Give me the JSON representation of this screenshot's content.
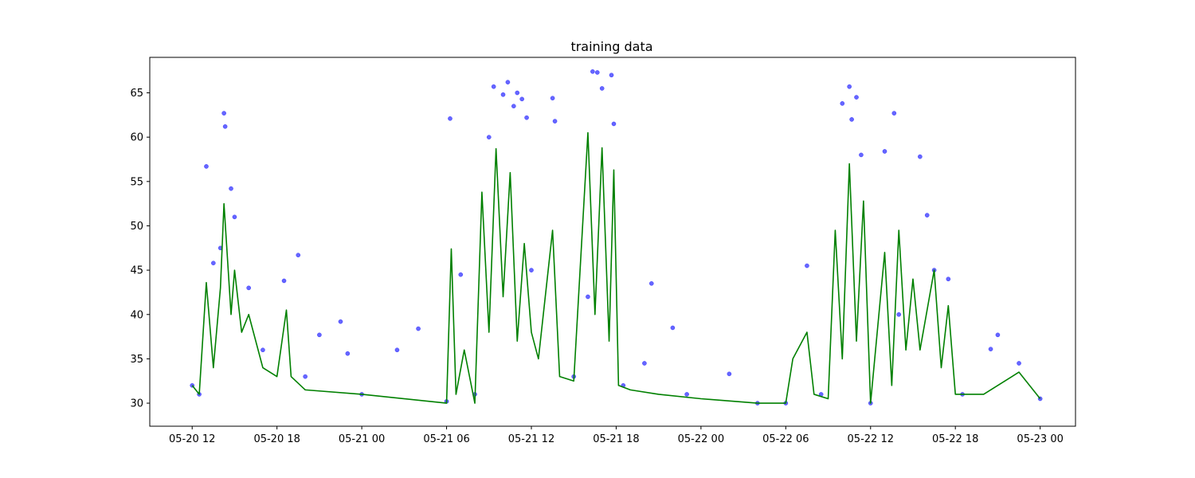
{
  "chart_data": {
    "type": "line",
    "title": "training data",
    "xlabel": "",
    "ylabel": "",
    "x_unit": "datetime",
    "xlim": [
      "2024-05-20 09:00",
      "2024-05-23 02:30"
    ],
    "ylim": [
      27.4,
      69.0
    ],
    "grid": false,
    "x_ticks": [
      "05-20 12",
      "05-20 18",
      "05-21 00",
      "05-21 06",
      "05-21 12",
      "05-21 18",
      "05-22 00",
      "05-22 06",
      "05-22 12",
      "05-22 18",
      "05-23 00"
    ],
    "x_tick_values": [
      "2024-05-20 12:00",
      "2024-05-20 18:00",
      "2024-05-21 00:00",
      "2024-05-21 06:00",
      "2024-05-21 12:00",
      "2024-05-21 18:00",
      "2024-05-22 00:00",
      "2024-05-22 06:00",
      "2024-05-22 12:00",
      "2024-05-22 18:00",
      "2024-05-23 00:00"
    ],
    "y_ticks": [
      30,
      35,
      40,
      45,
      50,
      55,
      60,
      65
    ],
    "colors": {
      "scatter": "#0000ff",
      "line": "#008000"
    },
    "series": [
      {
        "type": "scatter",
        "points": [
          {
            "x": "2024-05-20 12:00",
            "y": 32.0
          },
          {
            "x": "2024-05-20 12:30",
            "y": 31.0
          },
          {
            "x": "2024-05-20 13:00",
            "y": 56.7
          },
          {
            "x": "2024-05-20 13:30",
            "y": 45.8
          },
          {
            "x": "2024-05-20 14:00",
            "y": 47.5
          },
          {
            "x": "2024-05-20 14:15",
            "y": 62.7
          },
          {
            "x": "2024-05-20 14:20",
            "y": 61.2
          },
          {
            "x": "2024-05-20 14:45",
            "y": 54.2
          },
          {
            "x": "2024-05-20 15:00",
            "y": 51.0
          },
          {
            "x": "2024-05-20 16:00",
            "y": 43.0
          },
          {
            "x": "2024-05-20 17:00",
            "y": 36.0
          },
          {
            "x": "2024-05-20 18:30",
            "y": 43.8
          },
          {
            "x": "2024-05-20 19:30",
            "y": 46.7
          },
          {
            "x": "2024-05-20 20:00",
            "y": 33.0
          },
          {
            "x": "2024-05-20 21:00",
            "y": 37.7
          },
          {
            "x": "2024-05-20 22:30",
            "y": 39.2
          },
          {
            "x": "2024-05-20 23:00",
            "y": 35.6
          },
          {
            "x": "2024-05-21 00:00",
            "y": 31.0
          },
          {
            "x": "2024-05-21 02:30",
            "y": 36.0
          },
          {
            "x": "2024-05-21 04:00",
            "y": 38.4
          },
          {
            "x": "2024-05-21 06:00",
            "y": 30.2
          },
          {
            "x": "2024-05-21 06:15",
            "y": 62.1
          },
          {
            "x": "2024-05-21 07:00",
            "y": 44.5
          },
          {
            "x": "2024-05-21 08:00",
            "y": 31.0
          },
          {
            "x": "2024-05-21 09:00",
            "y": 60.0
          },
          {
            "x": "2024-05-21 09:20",
            "y": 65.7
          },
          {
            "x": "2024-05-21 10:00",
            "y": 64.8
          },
          {
            "x": "2024-05-21 10:20",
            "y": 66.2
          },
          {
            "x": "2024-05-21 10:45",
            "y": 63.5
          },
          {
            "x": "2024-05-21 11:00",
            "y": 65.0
          },
          {
            "x": "2024-05-21 11:20",
            "y": 64.3
          },
          {
            "x": "2024-05-21 11:40",
            "y": 62.2
          },
          {
            "x": "2024-05-21 12:00",
            "y": 45.0
          },
          {
            "x": "2024-05-21 13:30",
            "y": 64.4
          },
          {
            "x": "2024-05-21 13:40",
            "y": 61.8
          },
          {
            "x": "2024-05-21 15:00",
            "y": 33.0
          },
          {
            "x": "2024-05-21 16:00",
            "y": 42.0
          },
          {
            "x": "2024-05-21 16:20",
            "y": 67.4
          },
          {
            "x": "2024-05-21 16:40",
            "y": 67.3
          },
          {
            "x": "2024-05-21 17:00",
            "y": 65.5
          },
          {
            "x": "2024-05-21 17:40",
            "y": 67.0
          },
          {
            "x": "2024-05-21 17:50",
            "y": 61.5
          },
          {
            "x": "2024-05-21 18:30",
            "y": 32.0
          },
          {
            "x": "2024-05-21 20:00",
            "y": 34.5
          },
          {
            "x": "2024-05-21 20:30",
            "y": 43.5
          },
          {
            "x": "2024-05-21 22:00",
            "y": 38.5
          },
          {
            "x": "2024-05-21 23:00",
            "y": 31.0
          },
          {
            "x": "2024-05-22 02:00",
            "y": 33.3
          },
          {
            "x": "2024-05-22 04:00",
            "y": 30.0
          },
          {
            "x": "2024-05-22 06:00",
            "y": 30.0
          },
          {
            "x": "2024-05-22 07:30",
            "y": 45.5
          },
          {
            "x": "2024-05-22 08:30",
            "y": 31.0
          },
          {
            "x": "2024-05-22 10:00",
            "y": 63.8
          },
          {
            "x": "2024-05-22 10:30",
            "y": 65.7
          },
          {
            "x": "2024-05-22 10:40",
            "y": 62.0
          },
          {
            "x": "2024-05-22 11:00",
            "y": 64.5
          },
          {
            "x": "2024-05-22 11:20",
            "y": 58.0
          },
          {
            "x": "2024-05-22 12:00",
            "y": 30.0
          },
          {
            "x": "2024-05-22 13:00",
            "y": 58.4
          },
          {
            "x": "2024-05-22 13:40",
            "y": 62.7
          },
          {
            "x": "2024-05-22 14:00",
            "y": 40.0
          },
          {
            "x": "2024-05-22 15:30",
            "y": 57.8
          },
          {
            "x": "2024-05-22 16:00",
            "y": 51.2
          },
          {
            "x": "2024-05-22 16:30",
            "y": 45.0
          },
          {
            "x": "2024-05-22 17:30",
            "y": 44.0
          },
          {
            "x": "2024-05-22 18:30",
            "y": 31.0
          },
          {
            "x": "2024-05-22 20:30",
            "y": 36.1
          },
          {
            "x": "2024-05-22 21:00",
            "y": 37.7
          },
          {
            "x": "2024-05-22 22:30",
            "y": 34.5
          },
          {
            "x": "2024-05-23 00:00",
            "y": 30.5
          }
        ]
      },
      {
        "type": "line",
        "points": [
          {
            "x": "2024-05-20 12:00",
            "y": 32.0
          },
          {
            "x": "2024-05-20 12:30",
            "y": 31.0
          },
          {
            "x": "2024-05-20 13:00",
            "y": 43.6
          },
          {
            "x": "2024-05-20 13:30",
            "y": 34.0
          },
          {
            "x": "2024-05-20 14:00",
            "y": 43.0
          },
          {
            "x": "2024-05-20 14:15",
            "y": 52.5
          },
          {
            "x": "2024-05-20 14:45",
            "y": 40.0
          },
          {
            "x": "2024-05-20 15:00",
            "y": 45.0
          },
          {
            "x": "2024-05-20 15:30",
            "y": 38.0
          },
          {
            "x": "2024-05-20 16:00",
            "y": 40.0
          },
          {
            "x": "2024-05-20 17:00",
            "y": 34.0
          },
          {
            "x": "2024-05-20 18:00",
            "y": 33.0
          },
          {
            "x": "2024-05-20 18:40",
            "y": 40.5
          },
          {
            "x": "2024-05-20 19:00",
            "y": 33.0
          },
          {
            "x": "2024-05-20 20:00",
            "y": 31.5
          },
          {
            "x": "2024-05-21 00:00",
            "y": 31.0
          },
          {
            "x": "2024-05-21 06:00",
            "y": 30.0
          },
          {
            "x": "2024-05-21 06:20",
            "y": 47.4
          },
          {
            "x": "2024-05-21 06:40",
            "y": 31.0
          },
          {
            "x": "2024-05-21 07:15",
            "y": 36.0
          },
          {
            "x": "2024-05-21 08:00",
            "y": 30.0
          },
          {
            "x": "2024-05-21 08:30",
            "y": 53.8
          },
          {
            "x": "2024-05-21 09:00",
            "y": 38.0
          },
          {
            "x": "2024-05-21 09:30",
            "y": 58.7
          },
          {
            "x": "2024-05-21 10:00",
            "y": 42.0
          },
          {
            "x": "2024-05-21 10:30",
            "y": 56.0
          },
          {
            "x": "2024-05-21 11:00",
            "y": 37.0
          },
          {
            "x": "2024-05-21 11:30",
            "y": 48.0
          },
          {
            "x": "2024-05-21 12:00",
            "y": 38.0
          },
          {
            "x": "2024-05-21 12:30",
            "y": 35.0
          },
          {
            "x": "2024-05-21 13:30",
            "y": 49.5
          },
          {
            "x": "2024-05-21 14:00",
            "y": 33.0
          },
          {
            "x": "2024-05-21 15:00",
            "y": 32.5
          },
          {
            "x": "2024-05-21 16:00",
            "y": 60.5
          },
          {
            "x": "2024-05-21 16:30",
            "y": 40.0
          },
          {
            "x": "2024-05-21 17:00",
            "y": 58.8
          },
          {
            "x": "2024-05-21 17:30",
            "y": 37.0
          },
          {
            "x": "2024-05-21 17:50",
            "y": 56.3
          },
          {
            "x": "2024-05-21 18:10",
            "y": 32.0
          },
          {
            "x": "2024-05-21 19:00",
            "y": 31.5
          },
          {
            "x": "2024-05-21 21:00",
            "y": 31.0
          },
          {
            "x": "2024-05-22 00:00",
            "y": 30.5
          },
          {
            "x": "2024-05-22 04:00",
            "y": 30.0
          },
          {
            "x": "2024-05-22 06:00",
            "y": 30.0
          },
          {
            "x": "2024-05-22 06:30",
            "y": 35.0
          },
          {
            "x": "2024-05-22 07:30",
            "y": 38.0
          },
          {
            "x": "2024-05-22 08:00",
            "y": 31.0
          },
          {
            "x": "2024-05-22 09:00",
            "y": 30.5
          },
          {
            "x": "2024-05-22 09:30",
            "y": 49.5
          },
          {
            "x": "2024-05-22 10:00",
            "y": 35.0
          },
          {
            "x": "2024-05-22 10:30",
            "y": 57.0
          },
          {
            "x": "2024-05-22 11:00",
            "y": 37.0
          },
          {
            "x": "2024-05-22 11:30",
            "y": 52.8
          },
          {
            "x": "2024-05-22 12:00",
            "y": 30.0
          },
          {
            "x": "2024-05-22 13:00",
            "y": 47.0
          },
          {
            "x": "2024-05-22 13:30",
            "y": 32.0
          },
          {
            "x": "2024-05-22 14:00",
            "y": 49.5
          },
          {
            "x": "2024-05-22 14:30",
            "y": 36.0
          },
          {
            "x": "2024-05-22 15:00",
            "y": 44.0
          },
          {
            "x": "2024-05-22 15:30",
            "y": 36.0
          },
          {
            "x": "2024-05-22 16:30",
            "y": 45.0
          },
          {
            "x": "2024-05-22 17:00",
            "y": 34.0
          },
          {
            "x": "2024-05-22 17:30",
            "y": 41.0
          },
          {
            "x": "2024-05-22 18:00",
            "y": 31.0
          },
          {
            "x": "2024-05-22 20:00",
            "y": 31.0
          },
          {
            "x": "2024-05-22 22:30",
            "y": 33.5
          },
          {
            "x": "2024-05-23 00:00",
            "y": 30.5
          }
        ]
      }
    ]
  }
}
